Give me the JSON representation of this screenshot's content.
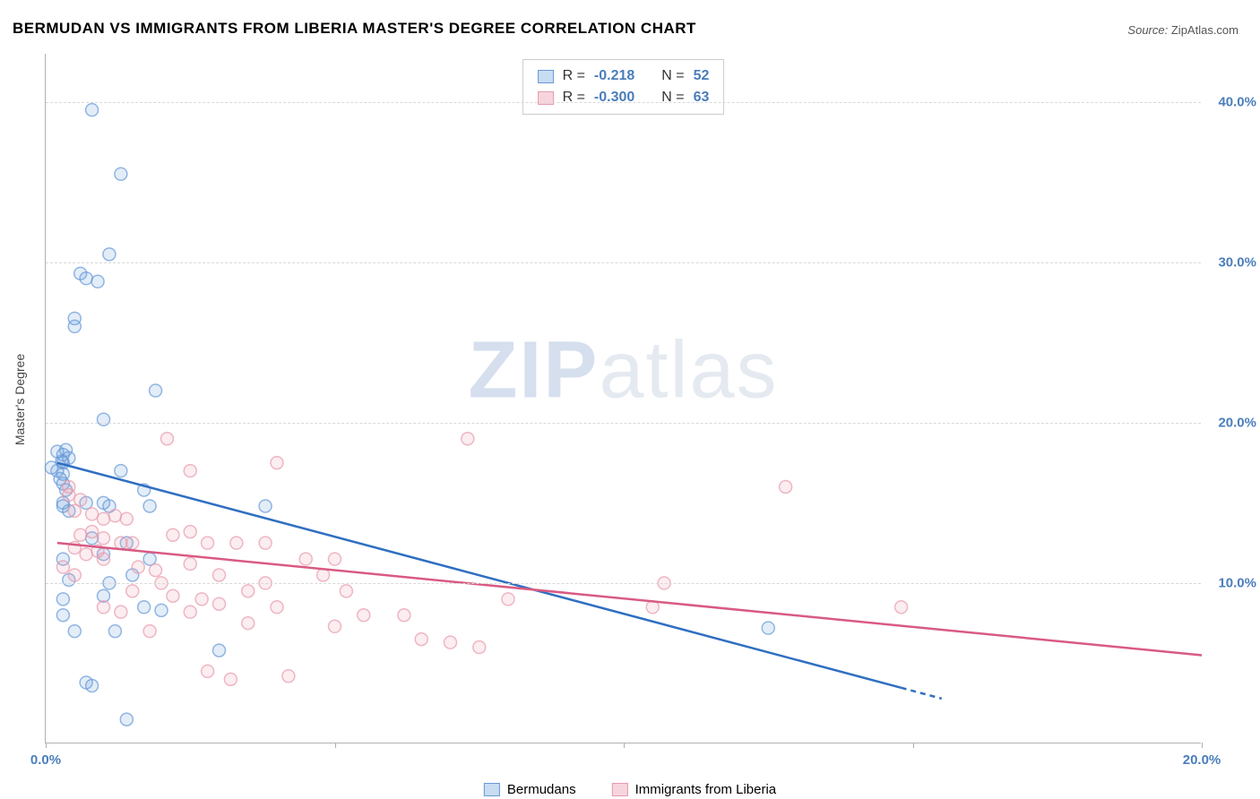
{
  "title": "BERMUDAN VS IMMIGRANTS FROM LIBERIA MASTER'S DEGREE CORRELATION CHART",
  "source_label": "Source:",
  "source_value": "ZipAtlas.com",
  "y_axis_title": "Master's Degree",
  "watermark_zip": "ZIP",
  "watermark_atlas": "atlas",
  "chart": {
    "type": "scatter",
    "background_color": "#ffffff",
    "grid_color": "#d8d8d8",
    "axis_color": "#b0b0b0",
    "xlim": [
      0,
      20
    ],
    "ylim": [
      0,
      43
    ],
    "x_ticks": [
      0,
      5,
      10,
      15,
      20
    ],
    "x_tick_labels": [
      "0.0%",
      "",
      "",
      "",
      "20.0%"
    ],
    "y_ticks": [
      10,
      20,
      30,
      40
    ],
    "y_tick_labels": [
      "10.0%",
      "20.0%",
      "30.0%",
      "40.0%"
    ],
    "tick_label_color": "#4a7ebb",
    "tick_label_fontsize": 15,
    "marker_radius": 7,
    "marker_fill_opacity": 0.18,
    "marker_stroke_opacity": 0.7,
    "marker_stroke_width": 1.5,
    "trendline_width": 2.5,
    "series": [
      {
        "key": "bermudans",
        "label": "Bermudans",
        "color": "#6699d8",
        "trend_color": "#2f6fc1",
        "swatch_fill": "#c8dcf2",
        "swatch_stroke": "#6699d8",
        "R": "-0.218",
        "N": "52",
        "trendline": {
          "x1": 0.2,
          "y1": 17.5,
          "x2": 15.5,
          "y2": 2.8,
          "dash_after_x": 14.8
        },
        "points": [
          [
            0.8,
            39.5
          ],
          [
            1.3,
            35.5
          ],
          [
            1.1,
            30.5
          ],
          [
            0.6,
            29.3
          ],
          [
            0.7,
            29.0
          ],
          [
            0.9,
            28.8
          ],
          [
            0.5,
            26.5
          ],
          [
            0.5,
            26.0
          ],
          [
            1.9,
            22.0
          ],
          [
            1.0,
            20.2
          ],
          [
            0.2,
            18.2
          ],
          [
            0.3,
            18.0
          ],
          [
            0.3,
            17.5
          ],
          [
            0.1,
            17.2
          ],
          [
            0.2,
            17.0
          ],
          [
            0.3,
            16.8
          ],
          [
            1.3,
            17.0
          ],
          [
            1.7,
            15.8
          ],
          [
            0.3,
            15.0
          ],
          [
            0.3,
            14.8
          ],
          [
            0.4,
            14.5
          ],
          [
            0.7,
            15.0
          ],
          [
            1.0,
            15.0
          ],
          [
            1.1,
            14.8
          ],
          [
            0.8,
            12.8
          ],
          [
            1.4,
            12.5
          ],
          [
            1.8,
            14.8
          ],
          [
            3.8,
            14.8
          ],
          [
            0.3,
            11.5
          ],
          [
            1.0,
            11.8
          ],
          [
            1.8,
            11.5
          ],
          [
            0.4,
            10.2
          ],
          [
            1.1,
            10.0
          ],
          [
            1.5,
            10.5
          ],
          [
            0.3,
            9.0
          ],
          [
            1.0,
            9.2
          ],
          [
            0.3,
            8.0
          ],
          [
            0.5,
            7.0
          ],
          [
            1.2,
            7.0
          ],
          [
            1.7,
            8.5
          ],
          [
            2.0,
            8.3
          ],
          [
            3.0,
            5.8
          ],
          [
            0.7,
            3.8
          ],
          [
            0.8,
            3.6
          ],
          [
            1.4,
            1.5
          ],
          [
            12.5,
            7.2
          ],
          [
            0.3,
            16.2
          ],
          [
            0.35,
            15.8
          ],
          [
            0.25,
            16.5
          ],
          [
            0.4,
            17.8
          ],
          [
            0.35,
            18.3
          ],
          [
            0.28,
            17.6
          ]
        ]
      },
      {
        "key": "liberia",
        "label": "Immigrants from Liberia",
        "color": "#e89aad",
        "trend_color": "#d95a82",
        "swatch_fill": "#f7d5de",
        "swatch_stroke": "#e89aad",
        "R": "-0.300",
        "N": "63",
        "trendline": {
          "x1": 0.2,
          "y1": 12.5,
          "x2": 20.0,
          "y2": 5.5
        },
        "points": [
          [
            0.4,
            16.0
          ],
          [
            0.4,
            15.5
          ],
          [
            0.6,
            15.2
          ],
          [
            0.5,
            14.5
          ],
          [
            0.8,
            14.3
          ],
          [
            1.0,
            14.0
          ],
          [
            1.2,
            14.2
          ],
          [
            1.4,
            14.0
          ],
          [
            0.6,
            13.0
          ],
          [
            0.8,
            13.2
          ],
          [
            1.0,
            12.8
          ],
          [
            1.3,
            12.5
          ],
          [
            0.5,
            12.2
          ],
          [
            0.7,
            11.8
          ],
          [
            0.9,
            12.0
          ],
          [
            1.5,
            12.5
          ],
          [
            1.0,
            11.5
          ],
          [
            1.6,
            11.0
          ],
          [
            1.9,
            10.8
          ],
          [
            0.5,
            10.5
          ],
          [
            0.3,
            11.0
          ],
          [
            2.1,
            19.0
          ],
          [
            2.5,
            17.0
          ],
          [
            2.2,
            13.0
          ],
          [
            2.5,
            13.2
          ],
          [
            2.8,
            12.5
          ],
          [
            4.0,
            17.5
          ],
          [
            2.0,
            10.0
          ],
          [
            2.5,
            11.2
          ],
          [
            3.0,
            10.5
          ],
          [
            3.3,
            12.5
          ],
          [
            3.8,
            12.5
          ],
          [
            4.5,
            11.5
          ],
          [
            5.0,
            11.5
          ],
          [
            7.3,
            19.0
          ],
          [
            2.2,
            9.2
          ],
          [
            2.7,
            9.0
          ],
          [
            3.5,
            9.5
          ],
          [
            3.8,
            10.0
          ],
          [
            4.8,
            10.5
          ],
          [
            5.2,
            9.5
          ],
          [
            2.5,
            8.2
          ],
          [
            3.0,
            8.7
          ],
          [
            4.0,
            8.5
          ],
          [
            5.5,
            8.0
          ],
          [
            6.2,
            8.0
          ],
          [
            3.5,
            7.5
          ],
          [
            5.0,
            7.3
          ],
          [
            6.5,
            6.5
          ],
          [
            7.0,
            6.3
          ],
          [
            7.5,
            6.0
          ],
          [
            8.0,
            9.0
          ],
          [
            10.5,
            8.5
          ],
          [
            10.7,
            10.0
          ],
          [
            12.8,
            16.0
          ],
          [
            14.8,
            8.5
          ],
          [
            2.8,
            4.5
          ],
          [
            3.2,
            4.0
          ],
          [
            4.2,
            4.2
          ],
          [
            1.0,
            8.5
          ],
          [
            1.3,
            8.2
          ],
          [
            1.8,
            7.0
          ],
          [
            1.5,
            9.5
          ]
        ]
      }
    ]
  },
  "stats_legend": {
    "R_label": "R =",
    "N_label": "N ="
  }
}
